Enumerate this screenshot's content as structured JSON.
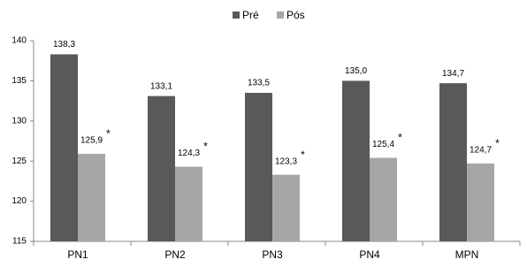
{
  "chart_data": {
    "type": "bar",
    "categories": [
      "PN1",
      "PN2",
      "PN3",
      "PN4",
      "MPN"
    ],
    "series": [
      {
        "name": "Pré",
        "color": "#595959",
        "values": [
          138.3,
          133.1,
          133.5,
          135.0,
          134.7
        ],
        "value_labels": [
          "138,3",
          "133,1",
          "133,5",
          "135,0",
          "134,7"
        ]
      },
      {
        "name": "Pós",
        "color": "#a6a6a6",
        "values": [
          125.9,
          124.3,
          123.3,
          125.4,
          124.7
        ],
        "value_labels": [
          "125,9",
          "124,3",
          "123,3",
          "125,4",
          "124,7"
        ],
        "annotations": [
          "*",
          "*",
          "*",
          "*",
          "*"
        ]
      }
    ],
    "ylim": [
      115,
      140
    ],
    "yticks": [
      115,
      120,
      125,
      130,
      135,
      140
    ],
    "grid": false,
    "legend": "top"
  }
}
